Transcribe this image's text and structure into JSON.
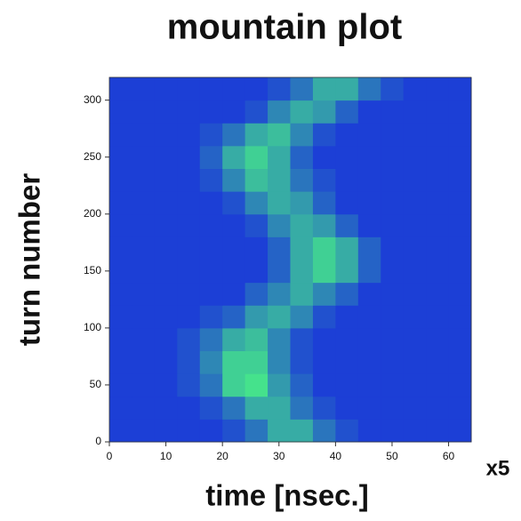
{
  "chart_data": {
    "type": "heatmap",
    "title": "mountain plot",
    "x_label": "time [nsec.]",
    "y_label": "turn number",
    "x_scale_label": "x5",
    "xlim": [
      0,
      64
    ],
    "ylim": [
      0,
      320
    ],
    "xticks": [
      0,
      10,
      20,
      30,
      40,
      50,
      60
    ],
    "yticks": [
      0,
      50,
      100,
      150,
      200,
      250,
      300
    ],
    "x_bins": [
      0,
      4,
      8,
      12,
      16,
      20,
      24,
      28,
      32,
      36,
      40,
      44,
      48,
      52,
      56,
      60,
      64
    ],
    "y_bins": [
      0,
      20,
      40,
      60,
      80,
      100,
      120,
      140,
      160,
      180,
      200,
      220,
      240,
      260,
      280,
      300,
      320
    ],
    "colormap": [
      "#1c3fd6",
      "#45e28c"
    ],
    "z": [
      [
        0,
        0,
        0,
        0,
        0,
        0.1,
        0.3,
        0.6,
        0.6,
        0.3,
        0.1,
        0,
        0,
        0,
        0,
        0
      ],
      [
        0,
        0,
        0,
        0,
        0.1,
        0.3,
        0.6,
        0.6,
        0.3,
        0.1,
        0,
        0,
        0,
        0,
        0,
        0
      ],
      [
        0,
        0,
        0,
        0.1,
        0.3,
        0.8,
        0.9,
        0.5,
        0.2,
        0,
        0,
        0,
        0,
        0,
        0,
        0
      ],
      [
        0,
        0,
        0,
        0.1,
        0.4,
        0.8,
        0.8,
        0.4,
        0.1,
        0,
        0,
        0,
        0,
        0,
        0,
        0
      ],
      [
        0,
        0,
        0,
        0.1,
        0.3,
        0.6,
        0.7,
        0.4,
        0.1,
        0,
        0,
        0,
        0,
        0,
        0,
        0
      ],
      [
        0,
        0,
        0,
        0,
        0.1,
        0.2,
        0.5,
        0.6,
        0.4,
        0.1,
        0,
        0,
        0,
        0,
        0,
        0
      ],
      [
        0,
        0,
        0,
        0,
        0,
        0,
        0.2,
        0.4,
        0.6,
        0.4,
        0.2,
        0,
        0,
        0,
        0,
        0
      ],
      [
        0,
        0,
        0,
        0,
        0,
        0,
        0,
        0.2,
        0.6,
        0.8,
        0.6,
        0.2,
        0,
        0,
        0,
        0
      ],
      [
        0,
        0,
        0,
        0,
        0,
        0,
        0,
        0.2,
        0.6,
        0.8,
        0.6,
        0.2,
        0,
        0,
        0,
        0
      ],
      [
        0,
        0,
        0,
        0,
        0,
        0,
        0.1,
        0.4,
        0.6,
        0.5,
        0.2,
        0,
        0,
        0,
        0,
        0
      ],
      [
        0,
        0,
        0,
        0,
        0,
        0.1,
        0.4,
        0.6,
        0.5,
        0.2,
        0,
        0,
        0,
        0,
        0,
        0
      ],
      [
        0,
        0,
        0,
        0,
        0.1,
        0.4,
        0.7,
        0.6,
        0.3,
        0.1,
        0,
        0,
        0,
        0,
        0,
        0
      ],
      [
        0,
        0,
        0,
        0,
        0.2,
        0.6,
        0.8,
        0.6,
        0.2,
        0,
        0,
        0,
        0,
        0,
        0,
        0
      ],
      [
        0,
        0,
        0,
        0,
        0.1,
        0.3,
        0.6,
        0.7,
        0.4,
        0.1,
        0,
        0,
        0,
        0,
        0,
        0
      ],
      [
        0,
        0,
        0,
        0,
        0,
        0,
        0.1,
        0.4,
        0.6,
        0.5,
        0.2,
        0,
        0,
        0,
        0,
        0
      ],
      [
        0,
        0,
        0,
        0,
        0,
        0,
        0,
        0.1,
        0.3,
        0.6,
        0.6,
        0.3,
        0.1,
        0,
        0,
        0
      ]
    ]
  }
}
